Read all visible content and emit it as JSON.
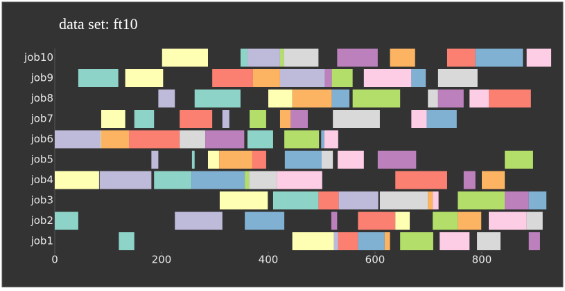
{
  "chart_data": {
    "type": "gantt",
    "title": "data set: ft10",
    "xlim": [
      0,
      940
    ],
    "xticks": [
      0,
      200,
      400,
      600,
      800
    ],
    "rows": [
      {
        "name": "job1",
        "tasks": [
          {
            "start": 120,
            "end": 149,
            "color": "#8dd3c7"
          },
          {
            "start": 445,
            "end": 523,
            "color": "#ffffb3"
          },
          {
            "start": 523,
            "end": 531,
            "color": "#bebada"
          },
          {
            "start": 531,
            "end": 568,
            "color": "#fb8072"
          },
          {
            "start": 568,
            "end": 618,
            "color": "#80b1d3"
          },
          {
            "start": 618,
            "end": 628,
            "color": "#fdb462"
          },
          {
            "start": 647,
            "end": 709,
            "color": "#b3de69"
          },
          {
            "start": 721,
            "end": 777,
            "color": "#fccde5"
          },
          {
            "start": 791,
            "end": 835,
            "color": "#d9d9d9"
          },
          {
            "start": 888,
            "end": 909,
            "color": "#bc80bd"
          }
        ]
      },
      {
        "name": "job2",
        "tasks": [
          {
            "start": 0,
            "end": 44,
            "color": "#8dd3c7"
          },
          {
            "start": 225,
            "end": 314,
            "color": "#bebada"
          },
          {
            "start": 356,
            "end": 430,
            "color": "#80b1d3"
          },
          {
            "start": 518,
            "end": 529,
            "color": "#bc80bd"
          },
          {
            "start": 568,
            "end": 638,
            "color": "#fb8072"
          },
          {
            "start": 638,
            "end": 665,
            "color": "#ffffb3"
          },
          {
            "start": 708,
            "end": 755,
            "color": "#b3de69"
          },
          {
            "start": 755,
            "end": 799,
            "color": "#fdb462"
          },
          {
            "start": 813,
            "end": 884,
            "color": "#fccde5"
          },
          {
            "start": 884,
            "end": 914,
            "color": "#d9d9d9"
          }
        ]
      },
      {
        "name": "job3",
        "tasks": [
          {
            "start": 309,
            "end": 399,
            "color": "#ffffb3"
          },
          {
            "start": 409,
            "end": 494,
            "color": "#8dd3c7"
          },
          {
            "start": 494,
            "end": 532,
            "color": "#fb8072"
          },
          {
            "start": 532,
            "end": 606,
            "color": "#bebada"
          },
          {
            "start": 609,
            "end": 699,
            "color": "#d9d9d9"
          },
          {
            "start": 699,
            "end": 708,
            "color": "#fdb462"
          },
          {
            "start": 708,
            "end": 719,
            "color": "#fccde5"
          },
          {
            "start": 755,
            "end": 843,
            "color": "#b3de69"
          },
          {
            "start": 843,
            "end": 888,
            "color": "#bc80bd"
          },
          {
            "start": 888,
            "end": 921,
            "color": "#80b1d3"
          }
        ]
      },
      {
        "name": "job4",
        "tasks": [
          {
            "start": 0,
            "end": 83,
            "color": "#ffffb3"
          },
          {
            "start": 84,
            "end": 181,
            "color": "#bebada"
          },
          {
            "start": 186,
            "end": 256,
            "color": "#8dd3c7"
          },
          {
            "start": 256,
            "end": 356,
            "color": "#80b1d3"
          },
          {
            "start": 356,
            "end": 364,
            "color": "#b3de69"
          },
          {
            "start": 364,
            "end": 416,
            "color": "#d9d9d9"
          },
          {
            "start": 416,
            "end": 501,
            "color": "#fccde5"
          },
          {
            "start": 638,
            "end": 735,
            "color": "#fb8072"
          },
          {
            "start": 766,
            "end": 788,
            "color": "#bc80bd"
          },
          {
            "start": 800,
            "end": 843,
            "color": "#fdb462"
          }
        ]
      },
      {
        "name": "job5",
        "tasks": [
          {
            "start": 181,
            "end": 194,
            "color": "#bebada"
          },
          {
            "start": 257,
            "end": 262,
            "color": "#8dd3c7"
          },
          {
            "start": 287,
            "end": 308,
            "color": "#ffffb3"
          },
          {
            "start": 308,
            "end": 370,
            "color": "#fdb462"
          },
          {
            "start": 370,
            "end": 396,
            "color": "#fb8072"
          },
          {
            "start": 431,
            "end": 500,
            "color": "#80b1d3"
          },
          {
            "start": 500,
            "end": 521,
            "color": "#d9d9d9"
          },
          {
            "start": 530,
            "end": 579,
            "color": "#fccde5"
          },
          {
            "start": 605,
            "end": 677,
            "color": "#bc80bd"
          },
          {
            "start": 843,
            "end": 896,
            "color": "#b3de69"
          }
        ]
      },
      {
        "name": "job6",
        "tasks": [
          {
            "start": 0,
            "end": 86,
            "color": "#bebada"
          },
          {
            "start": 86,
            "end": 87,
            "color": "#ffffb3"
          },
          {
            "start": 87,
            "end": 139,
            "color": "#fdb462"
          },
          {
            "start": 139,
            "end": 234,
            "color": "#fb8072"
          },
          {
            "start": 234,
            "end": 282,
            "color": "#d9d9d9"
          },
          {
            "start": 282,
            "end": 355,
            "color": "#bc80bd"
          },
          {
            "start": 361,
            "end": 409,
            "color": "#8dd3c7"
          },
          {
            "start": 430,
            "end": 495,
            "color": "#b3de69"
          },
          {
            "start": 499,
            "end": 505,
            "color": "#80b1d3"
          },
          {
            "start": 505,
            "end": 531,
            "color": "#fccde5"
          }
        ]
      },
      {
        "name": "job7",
        "tasks": [
          {
            "start": 87,
            "end": 132,
            "color": "#ffffb3"
          },
          {
            "start": 149,
            "end": 186,
            "color": "#8dd3c7"
          },
          {
            "start": 234,
            "end": 295,
            "color": "#fb8072"
          },
          {
            "start": 314,
            "end": 327,
            "color": "#bebada"
          },
          {
            "start": 365,
            "end": 396,
            "color": "#b3de69"
          },
          {
            "start": 422,
            "end": 442,
            "color": "#fdb462"
          },
          {
            "start": 442,
            "end": 474,
            "color": "#bc80bd"
          },
          {
            "start": 521,
            "end": 609,
            "color": "#d9d9d9"
          },
          {
            "start": 668,
            "end": 697,
            "color": "#fccde5"
          },
          {
            "start": 697,
            "end": 753,
            "color": "#80b1d3"
          }
        ]
      },
      {
        "name": "job8",
        "tasks": [
          {
            "start": 194,
            "end": 225,
            "color": "#bebada"
          },
          {
            "start": 262,
            "end": 348,
            "color": "#8dd3c7"
          },
          {
            "start": 400,
            "end": 445,
            "color": "#ffffb3"
          },
          {
            "start": 445,
            "end": 519,
            "color": "#fdb462"
          },
          {
            "start": 519,
            "end": 552,
            "color": "#80b1d3"
          },
          {
            "start": 558,
            "end": 647,
            "color": "#b3de69"
          },
          {
            "start": 699,
            "end": 718,
            "color": "#d9d9d9"
          },
          {
            "start": 718,
            "end": 766,
            "color": "#bc80bd"
          },
          {
            "start": 777,
            "end": 813,
            "color": "#fccde5"
          },
          {
            "start": 813,
            "end": 892,
            "color": "#fb8072"
          }
        ]
      },
      {
        "name": "job9",
        "tasks": [
          {
            "start": 44,
            "end": 119,
            "color": "#8dd3c7"
          },
          {
            "start": 132,
            "end": 203,
            "color": "#ffffb3"
          },
          {
            "start": 295,
            "end": 371,
            "color": "#fb8072"
          },
          {
            "start": 371,
            "end": 422,
            "color": "#fdb462"
          },
          {
            "start": 422,
            "end": 506,
            "color": "#bebada"
          },
          {
            "start": 506,
            "end": 519,
            "color": "#bc80bd"
          },
          {
            "start": 519,
            "end": 558,
            "color": "#b3de69"
          },
          {
            "start": 579,
            "end": 668,
            "color": "#fccde5"
          },
          {
            "start": 668,
            "end": 695,
            "color": "#80b1d3"
          },
          {
            "start": 718,
            "end": 792,
            "color": "#d9d9d9"
          }
        ]
      },
      {
        "name": "job10",
        "tasks": [
          {
            "start": 201,
            "end": 287,
            "color": "#ffffb3"
          },
          {
            "start": 348,
            "end": 361,
            "color": "#8dd3c7"
          },
          {
            "start": 361,
            "end": 422,
            "color": "#bebada"
          },
          {
            "start": 422,
            "end": 429,
            "color": "#b3de69"
          },
          {
            "start": 429,
            "end": 494,
            "color": "#d9d9d9"
          },
          {
            "start": 529,
            "end": 605,
            "color": "#bc80bd"
          },
          {
            "start": 628,
            "end": 675,
            "color": "#fdb462"
          },
          {
            "start": 735,
            "end": 788,
            "color": "#fb8072"
          },
          {
            "start": 788,
            "end": 877,
            "color": "#80b1d3"
          },
          {
            "start": 884,
            "end": 930,
            "color": "#fccde5"
          }
        ]
      }
    ]
  }
}
